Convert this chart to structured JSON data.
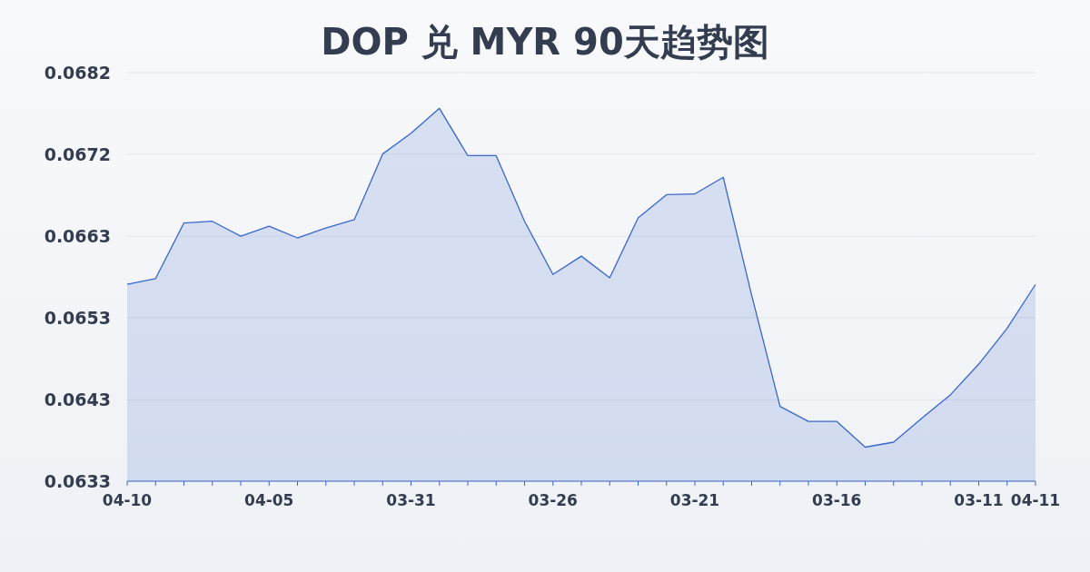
{
  "chart_data": {
    "type": "area",
    "title": "DOP 兑 MYR 90天趋势图",
    "categories": [
      "04-10",
      null,
      null,
      null,
      null,
      "04-05",
      null,
      null,
      null,
      null,
      "03-31",
      null,
      null,
      null,
      null,
      "03-26",
      null,
      null,
      null,
      null,
      "03-21",
      null,
      null,
      null,
      null,
      "03-16",
      null,
      null,
      null,
      null,
      "03-11",
      null,
      "04-11"
    ],
    "series": [
      {
        "color": "#3a66cc",
        "values": [
          0.06567,
          0.06574,
          0.06641,
          0.06643,
          0.06625,
          0.06637,
          0.06623,
          0.06635,
          0.06645,
          0.06724,
          0.06749,
          0.06779,
          0.06722,
          0.06722,
          0.06643,
          0.06579,
          0.06601,
          0.06575,
          0.06647,
          0.06675,
          0.06676,
          0.06696,
          0.06554,
          0.0642,
          0.06402,
          0.06402,
          0.06371,
          0.06377,
          0.06406,
          0.06434,
          0.06471,
          0.06514,
          0.06567
        ]
      }
    ],
    "ylim": [
      0.0633,
      0.06822
    ],
    "yticks": [
      {
        "value": 0.0633,
        "label": "0.0633"
      },
      {
        "value": 0.06428,
        "label": "0.0643"
      },
      {
        "value": 0.06527,
        "label": "0.0653"
      },
      {
        "value": 0.06625,
        "label": "0.0663"
      },
      {
        "value": 0.06724,
        "label": "0.0672"
      },
      {
        "value": 0.06822,
        "label": "0.0682"
      }
    ],
    "grid": "y"
  }
}
